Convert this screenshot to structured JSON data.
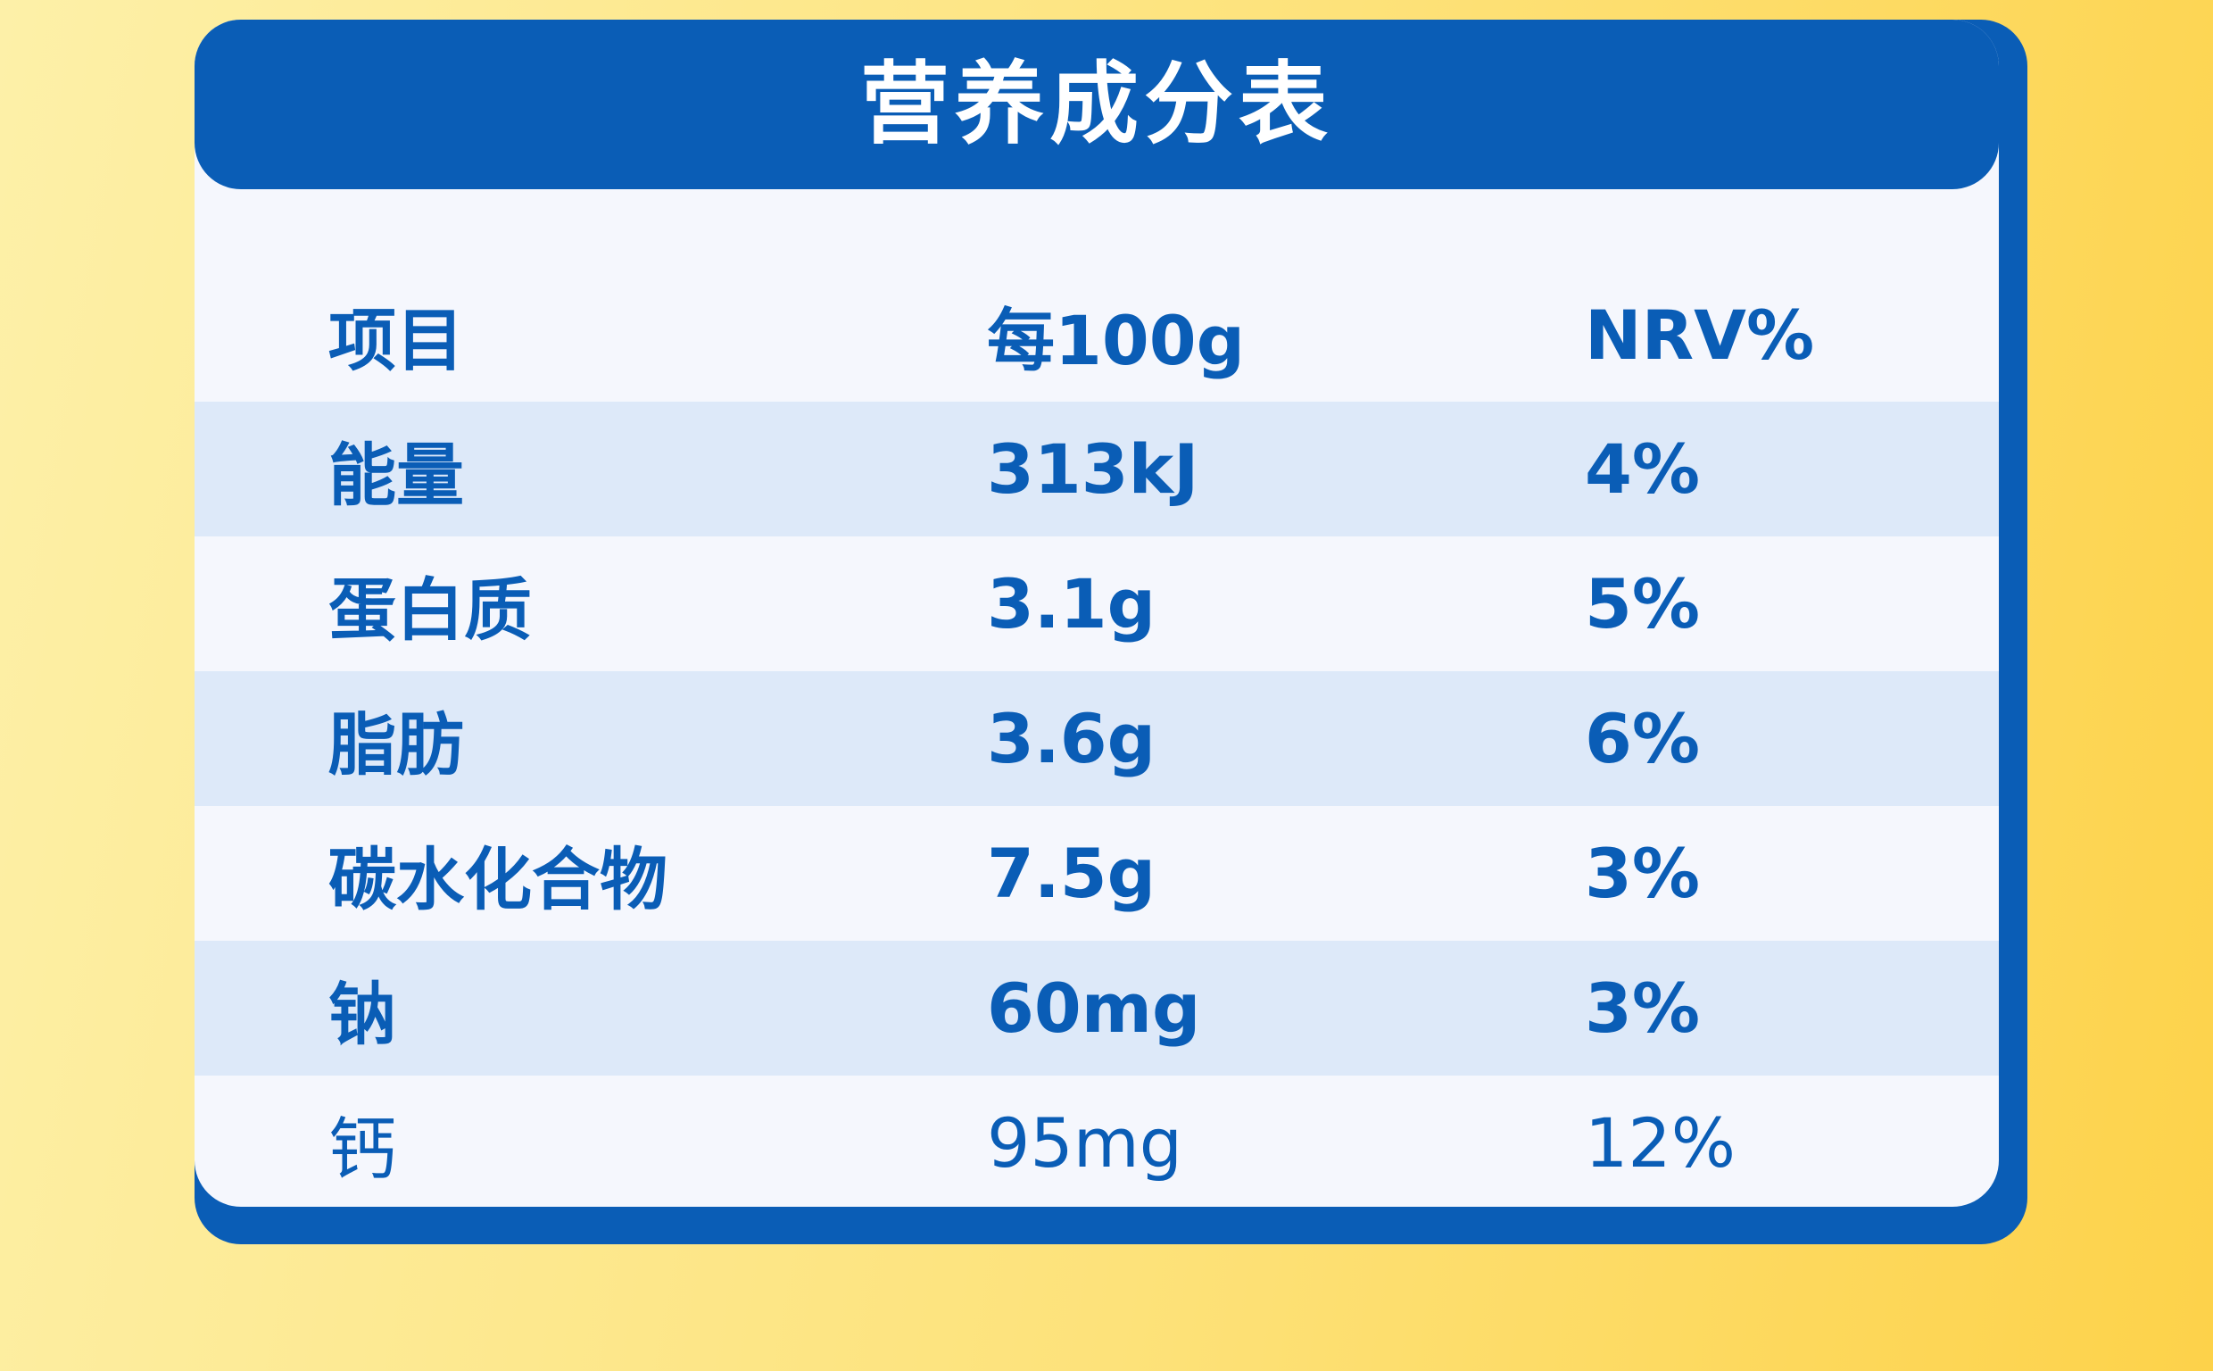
{
  "table": {
    "title": "营养成分表",
    "columns": [
      "项目",
      "每100g",
      "NRV%"
    ],
    "rows": [
      {
        "item": "能量",
        "per100g": "313kJ",
        "nrv": "4%"
      },
      {
        "item": "蛋白质",
        "per100g": "3.1g",
        "nrv": "5%"
      },
      {
        "item": "脂肪",
        "per100g": "3.6g",
        "nrv": "6%"
      },
      {
        "item": "碳水化合物",
        "per100g": "7.5g",
        "nrv": "3%"
      },
      {
        "item": "钠",
        "per100g": "60mg",
        "nrv": "3%"
      },
      {
        "item": "钙",
        "per100g": "95mg",
        "nrv": "12%"
      }
    ]
  },
  "colors": {
    "brand_blue": "#0a5db6",
    "row_alt": "#dde9f9",
    "card_bg": "#f5f7fd",
    "background_yellow": "#fde27a"
  }
}
